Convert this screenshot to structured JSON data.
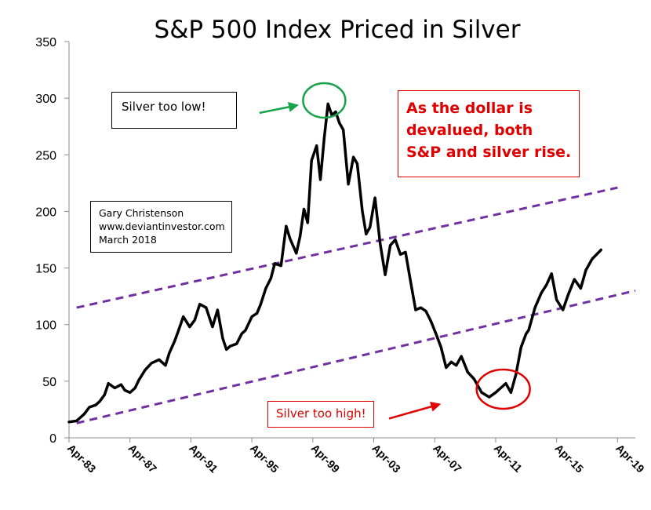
{
  "chart_data": {
    "type": "line",
    "title": "S&P 500 Index Priced in Silver",
    "xlabel": "",
    "ylabel": "",
    "ylim": [
      0,
      350
    ],
    "xlim": [
      "1983-04",
      "2020-06"
    ],
    "yticks": [
      "0",
      "50",
      "100",
      "150",
      "200",
      "250",
      "300",
      "350"
    ],
    "xticks": [
      {
        "date": "1983-04",
        "label": "Apr-83"
      },
      {
        "date": "1987-04",
        "label": "Apr-87"
      },
      {
        "date": "1991-04",
        "label": "Apr-91"
      },
      {
        "date": "1995-04",
        "label": "Apr-95"
      },
      {
        "date": "1999-04",
        "label": "Apr-99"
      },
      {
        "date": "2003-04",
        "label": "Apr-03"
      },
      {
        "date": "2007-04",
        "label": "Apr-07"
      },
      {
        "date": "2011-04",
        "label": "Apr-11"
      },
      {
        "date": "2015-04",
        "label": "Apr-15"
      },
      {
        "date": "2019-04",
        "label": "Apr-19"
      }
    ],
    "grid": false,
    "legend": "none",
    "series": [
      {
        "color": "#000000",
        "x": [
          "1983-04",
          "1983-10",
          "1984-01",
          "1984-04",
          "1984-08",
          "1985-01",
          "1985-04",
          "1985-08",
          "1985-11",
          "1986-04",
          "1986-09",
          "1986-12",
          "1987-04",
          "1987-08",
          "1987-11",
          "1988-04",
          "1988-09",
          "1989-03",
          "1989-08",
          "1989-11",
          "1990-03",
          "1990-06",
          "1990-10",
          "1991-03",
          "1991-07",
          "1991-11",
          "1992-04",
          "1992-09",
          "1993-01",
          "1993-05",
          "1993-08",
          "1993-11",
          "1994-04",
          "1994-08",
          "1994-11",
          "1995-04",
          "1995-08",
          "1995-11",
          "1996-03",
          "1996-07",
          "1996-10",
          "1997-03",
          "1997-07",
          "1997-10",
          "1998-03",
          "1998-06",
          "1998-09",
          "1998-12",
          "1999-03",
          "1999-07",
          "1999-10",
          "2000-01",
          "2000-04",
          "2000-07",
          "2000-10",
          "2001-01",
          "2001-04",
          "2001-08",
          "2001-12",
          "2002-03",
          "2002-07",
          "2002-10",
          "2003-01",
          "2003-05",
          "2003-09",
          "2004-01",
          "2004-05",
          "2004-09",
          "2005-01",
          "2005-05",
          "2005-09",
          "2006-01",
          "2006-05",
          "2006-09",
          "2007-01",
          "2007-05",
          "2007-09",
          "2008-01",
          "2008-05",
          "2008-09",
          "2009-01",
          "2009-06",
          "2009-11",
          "2010-05",
          "2010-11",
          "2011-04",
          "2011-08",
          "2011-12",
          "2012-04",
          "2012-08",
          "2012-12",
          "2013-04",
          "2013-06",
          "2013-11",
          "2014-04",
          "2014-08",
          "2014-12",
          "2015-04",
          "2015-09",
          "2016-01",
          "2016-06",
          "2016-11",
          "2017-03",
          "2017-08",
          "2018-03"
        ],
        "values": [
          14,
          15,
          18,
          21,
          27,
          29,
          32,
          38,
          48,
          44,
          47,
          42,
          40,
          44,
          51,
          60,
          66,
          69,
          64,
          75,
          85,
          94,
          107,
          98,
          104,
          118,
          115,
          98,
          113,
          88,
          78,
          81,
          83,
          92,
          95,
          107,
          110,
          118,
          132,
          141,
          154,
          152,
          187,
          176,
          163,
          178,
          202,
          190,
          245,
          258,
          228,
          265,
          295,
          285,
          288,
          278,
          272,
          224,
          248,
          242,
          200,
          180,
          186,
          212,
          172,
          144,
          170,
          175,
          162,
          164,
          138,
          113,
          115,
          112,
          103,
          92,
          80,
          62,
          67,
          64,
          72,
          58,
          52,
          40,
          36,
          40,
          44,
          48,
          40,
          56,
          80,
          92,
          95,
          115,
          128,
          135,
          145,
          122,
          113,
          126,
          140,
          132,
          148,
          158,
          166
        ]
      }
    ]
  },
  "annotations": {
    "silver_too_low": "Silver too low!",
    "silver_too_high": "Silver too high!",
    "dollar_text": [
      "As the dollar is",
      "devalued, both",
      "S&P and silver rise."
    ],
    "credit": [
      "Gary Christenson",
      "www.deviantinvestor.com",
      "March 2018"
    ],
    "colors": {
      "low_callout": "#17a34a",
      "high_callout": "#e00000",
      "trend_lines": "#7030a0"
    },
    "trend_lines": [
      {
        "from": {
          "date": "1983-10",
          "value": 115
        },
        "to": {
          "date": "2019-04",
          "value": 221
        }
      },
      {
        "from": {
          "date": "1983-10",
          "value": 13
        },
        "to": {
          "date": "2020-06",
          "value": 130
        }
      }
    ],
    "highlight_circles": [
      {
        "name": "peak",
        "date": "2000-01",
        "value": 298
      },
      {
        "name": "trough",
        "date": "2011-10",
        "value": 43
      }
    ],
    "arrows": [
      {
        "name": "low-arrow",
        "from": {
          "date": "1995-10",
          "value": 287
        },
        "to": {
          "date": "1998-05",
          "value": 294
        }
      },
      {
        "name": "high-arrow",
        "from": {
          "date": "2004-04",
          "value": 17
        },
        "to": {
          "date": "2007-09",
          "value": 30
        }
      }
    ]
  }
}
